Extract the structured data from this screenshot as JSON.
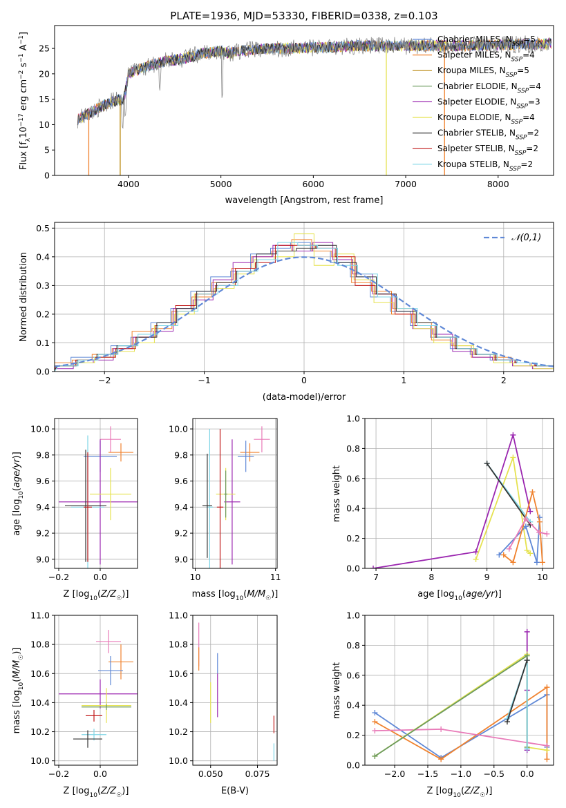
{
  "chart_data": [
    {
      "type": "line",
      "title": "PLATE=1936, MJD=53330, FIBERID=0338, z=0.103",
      "xlabel": "wavelength [Angstrom, rest frame]",
      "ylabel": "Flux [f_λ10^-17 erg cm^-2 s^-1 A^-1]",
      "xlim": [
        3200,
        8600
      ],
      "ylim": [
        0,
        29.5
      ],
      "xticks": [
        4000,
        5000,
        6000,
        7000,
        8000
      ],
      "yticks": [
        0,
        5,
        10,
        15,
        20,
        25
      ],
      "legend_position": "right",
      "series": [
        {
          "name": "Chabrier MILES, N_SSP=5",
          "color": "#5f88d6"
        },
        {
          "name": "Salpeter MILES, N_SSP=4",
          "color": "#f0822e"
        },
        {
          "name": "Kroupa MILES, N_SSP=5",
          "color": "#b8860b"
        },
        {
          "name": "Chabrier ELODIE, N_SSP=4",
          "color": "#6b9a5e"
        },
        {
          "name": "Salpeter ELODIE, N_SSP=3",
          "color": "#9b27b0"
        },
        {
          "name": "Kroupa ELODIE, N_SSP=4",
          "color": "#e5e24f"
        },
        {
          "name": "Chabrier STELIB, N_SSP=2",
          "color": "#333333"
        },
        {
          "name": "Salpeter STELIB, N_SSP=2",
          "color": "#c01818"
        },
        {
          "name": "Kroupa STELIB, N_SSP=2",
          "color": "#7fd6e6"
        }
      ],
      "data_series": {
        "name": "data",
        "color": "#888888",
        "x": [
          3450,
          3600,
          3800,
          3950,
          4000,
          4200,
          4400,
          4600,
          4800,
          5000,
          5100,
          5200,
          5400,
          5600,
          5800,
          6000,
          6200,
          6400,
          6600,
          6800,
          7000,
          7200,
          7400,
          7600,
          7800,
          8000,
          8200,
          8400,
          8580
        ],
        "y": [
          11,
          12.5,
          14.5,
          15,
          20,
          21.5,
          22.5,
          23,
          24,
          24.5,
          24,
          24.5,
          24.8,
          25,
          25,
          25.2,
          25.2,
          25.5,
          25.5,
          25.5,
          25.5,
          25.5,
          25.6,
          25.5,
          25.6,
          25.7,
          25.8,
          25.8,
          26
        ]
      }
    },
    {
      "type": "step",
      "xlabel": "(data-model)/error",
      "ylabel": "Normed distribution",
      "xlim": [
        -2.5,
        2.5
      ],
      "ylim": [
        0,
        0.52
      ],
      "xticks": [
        -2,
        -1,
        0,
        1,
        2
      ],
      "yticks": [
        0.0,
        0.1,
        0.2,
        0.3,
        0.4,
        0.5
      ],
      "grid": true,
      "legend_position": "top-right",
      "reference_curve": {
        "name": "𝒩(0,1)",
        "color": "#5f88d6"
      },
      "bin_edges": [
        -2.5,
        -2.3,
        -2.1,
        -1.9,
        -1.7,
        -1.5,
        -1.3,
        -1.1,
        -0.9,
        -0.7,
        -0.5,
        -0.3,
        -0.1,
        0.1,
        0.3,
        0.5,
        0.7,
        0.9,
        1.1,
        1.3,
        1.5,
        1.7,
        1.9,
        2.1,
        2.3,
        2.5
      ],
      "series": [
        {
          "color": "#5f88d6",
          "values": [
            0.02,
            0.05,
            0.05,
            0.09,
            0.12,
            0.17,
            0.22,
            0.28,
            0.33,
            0.35,
            0.41,
            0.43,
            0.45,
            0.42,
            0.38,
            0.33,
            0.26,
            0.21,
            0.16,
            0.12,
            0.08,
            0.06,
            0.04,
            0.03,
            0.02
          ]
        },
        {
          "color": "#f0822e",
          "values": [
            0.03,
            0.04,
            0.06,
            0.08,
            0.14,
            0.15,
            0.21,
            0.26,
            0.31,
            0.36,
            0.4,
            0.42,
            0.46,
            0.42,
            0.4,
            0.31,
            0.28,
            0.2,
            0.17,
            0.11,
            0.09,
            0.05,
            0.05,
            0.03,
            0.02
          ]
        },
        {
          "color": "#9b27b0",
          "values": [
            0.01,
            0.03,
            0.04,
            0.08,
            0.12,
            0.14,
            0.22,
            0.25,
            0.32,
            0.38,
            0.4,
            0.44,
            0.42,
            0.45,
            0.39,
            0.34,
            0.27,
            0.22,
            0.15,
            0.13,
            0.07,
            0.05,
            0.04,
            0.02,
            0.01
          ]
        },
        {
          "color": "#e5e24f",
          "values": [
            0.02,
            0.03,
            0.05,
            0.07,
            0.1,
            0.16,
            0.2,
            0.27,
            0.29,
            0.34,
            0.39,
            0.4,
            0.48,
            0.37,
            0.41,
            0.32,
            0.24,
            0.22,
            0.15,
            0.1,
            0.09,
            0.06,
            0.03,
            0.02,
            0.01
          ]
        },
        {
          "color": "#c01818",
          "values": [
            0.02,
            0.04,
            0.05,
            0.08,
            0.12,
            0.16,
            0.23,
            0.27,
            0.3,
            0.36,
            0.38,
            0.44,
            0.44,
            0.43,
            0.4,
            0.3,
            0.27,
            0.2,
            0.16,
            0.12,
            0.08,
            0.06,
            0.04,
            0.03,
            0.02
          ]
        },
        {
          "color": "#333333",
          "values": [
            0.02,
            0.04,
            0.06,
            0.09,
            0.12,
            0.17,
            0.22,
            0.28,
            0.31,
            0.35,
            0.41,
            0.42,
            0.43,
            0.44,
            0.38,
            0.33,
            0.27,
            0.21,
            0.17,
            0.12,
            0.08,
            0.06,
            0.04,
            0.03,
            0.02
          ]
        },
        {
          "color": "#7fd6e6",
          "values": [
            0.02,
            0.04,
            0.06,
            0.09,
            0.13,
            0.16,
            0.21,
            0.27,
            0.3,
            0.35,
            0.39,
            0.45,
            0.44,
            0.43,
            0.37,
            0.34,
            0.26,
            0.22,
            0.16,
            0.12,
            0.08,
            0.06,
            0.04,
            0.03,
            0.02
          ]
        }
      ]
    },
    {
      "type": "errorbar",
      "xlabel": "Z [log₁₀(Z/Z☉)]",
      "ylabel": "age  [log₁₀(age/yr)]",
      "xlim": [
        -0.22,
        0.18
      ],
      "ylim": [
        8.93,
        10.08
      ],
      "xticks": [
        -0.2,
        0.0
      ],
      "yticks": [
        9.0,
        9.2,
        9.4,
        9.6,
        9.8,
        10.0
      ],
      "grid": true,
      "points": [
        {
          "color": "#e87ab8",
          "x": 0.05,
          "y": 9.92,
          "xerr": 0.05,
          "yerr": 0.1
        },
        {
          "color": "#f0822e",
          "x": 0.1,
          "y": 9.82,
          "xerr": 0.06,
          "yerr": 0.07
        },
        {
          "color": "#5f88d6",
          "x": 0.0,
          "y": 9.79,
          "xerr": 0.08,
          "yerr": 0.12
        },
        {
          "color": "#9b27b0",
          "x": 0.0,
          "y": 9.44,
          "xerr": 0.2,
          "yerr": 0.48
        },
        {
          "color": "#e5e24f",
          "x": 0.05,
          "y": 9.5,
          "xerr": 0.1,
          "yerr": 0.2
        },
        {
          "color": "#333333",
          "x": -0.07,
          "y": 9.41,
          "xerr": 0.1,
          "yerr": 0.43
        },
        {
          "color": "#7fd6e6",
          "x": -0.06,
          "y": 9.4,
          "xerr": 0.08,
          "yerr": 0.55
        },
        {
          "color": "#c01818",
          "x": -0.06,
          "y": 9.4,
          "xerr": 0.02,
          "yerr": 0.42
        }
      ]
    },
    {
      "type": "errorbar",
      "xlabel": "mass [log₁₀(M/M☉)]",
      "ylabel": "",
      "xlim": [
        9.97,
        11.02
      ],
      "ylim": [
        8.93,
        10.08
      ],
      "xticks": [
        10,
        11
      ],
      "yticks": [
        9.0,
        9.2,
        9.4,
        9.6,
        9.8,
        10.0
      ],
      "grid": true,
      "points": [
        {
          "color": "#e87ab8",
          "x": 10.83,
          "y": 9.92,
          "xerr": 0.1,
          "yerr": 0.1
        },
        {
          "color": "#f0822e",
          "x": 10.68,
          "y": 9.82,
          "xerr": 0.12,
          "yerr": 0.07
        },
        {
          "color": "#5f88d6",
          "x": 10.63,
          "y": 9.79,
          "xerr": 0.1,
          "yerr": 0.12
        },
        {
          "color": "#9b27b0",
          "x": 10.46,
          "y": 9.44,
          "xerr": 0.1,
          "yerr": 0.48
        },
        {
          "color": "#e5e24f",
          "x": 10.38,
          "y": 9.5,
          "xerr": 0.12,
          "yerr": 0.2
        },
        {
          "color": "#6b9a5e",
          "x": 10.38,
          "y": 9.5,
          "xerr": 0.02,
          "yerr": 0.18
        },
        {
          "color": "#c01818",
          "x": 10.31,
          "y": 9.4,
          "xerr": 0.04,
          "yerr": 0.6
        },
        {
          "color": "#7fd6e6",
          "x": 10.18,
          "y": 9.4,
          "xerr": 0.04,
          "yerr": 0.6
        },
        {
          "color": "#333333",
          "x": 10.15,
          "y": 9.41,
          "xerr": 0.06,
          "yerr": 0.4
        }
      ]
    },
    {
      "type": "line",
      "xlabel": "age  [log₁₀(age/yr)]",
      "ylabel": "mass weight",
      "xlim": [
        6.8,
        10.2
      ],
      "ylim": [
        0,
        1
      ],
      "xticks": [
        7,
        8,
        9,
        10
      ],
      "yticks": [
        0.0,
        0.2,
        0.4,
        0.6,
        0.8,
        1.0
      ],
      "grid": true,
      "series": [
        {
          "color": "#9b27b0",
          "x": [
            6.95,
            8.8,
            9.47,
            9.78
          ],
          "y": [
            0.0,
            0.11,
            0.89,
            0.38
          ]
        },
        {
          "color": "#e5e24f",
          "x": [
            8.8,
            9.47,
            9.72,
            9.78
          ],
          "y": [
            0.06,
            0.74,
            0.12,
            0.1
          ]
        },
        {
          "color": "#7fd6e6",
          "x": [
            9.0,
            9.78
          ],
          "y": [
            0.7,
            0.31
          ]
        },
        {
          "color": "#333333",
          "x": [
            9.0,
            9.78
          ],
          "y": [
            0.7,
            0.29
          ]
        },
        {
          "color": "#5f88d6",
          "x": [
            9.22,
            9.7,
            9.9,
            9.95
          ],
          "y": [
            0.09,
            0.28,
            0.04,
            0.34
          ]
        },
        {
          "color": "#f0822e",
          "x": [
            9.3,
            9.47,
            9.82,
            9.95,
            10.0
          ],
          "y": [
            0.09,
            0.04,
            0.51,
            0.31,
            0.04
          ]
        },
        {
          "color": "#e87ab8",
          "x": [
            9.4,
            9.7,
            9.94,
            10.08
          ],
          "y": [
            0.13,
            0.33,
            0.24,
            0.23
          ]
        }
      ]
    },
    {
      "type": "errorbar",
      "xlabel": "Z [log₁₀(Z/Z☉)]",
      "ylabel": "mass [log₁₀(M/M☉)]",
      "xlim": [
        -0.22,
        0.18
      ],
      "ylim": [
        9.97,
        11.0
      ],
      "xticks": [
        -0.2,
        0.0
      ],
      "yticks": [
        10.0,
        10.2,
        10.4,
        10.6,
        10.8,
        11.0
      ],
      "grid": true,
      "points": [
        {
          "color": "#e87ab8",
          "x": 0.04,
          "y": 10.82,
          "xerr": 0.06,
          "yerr": 0.08
        },
        {
          "color": "#f0822e",
          "x": 0.1,
          "y": 10.68,
          "xerr": 0.06,
          "yerr": 0.12
        },
        {
          "color": "#5f88d6",
          "x": 0.05,
          "y": 10.62,
          "xerr": 0.06,
          "yerr": 0.1
        },
        {
          "color": "#9b27b0",
          "x": 0.0,
          "y": 10.46,
          "xerr": 0.2,
          "yerr": 0.1
        },
        {
          "color": "#e5e24f",
          "x": 0.03,
          "y": 10.38,
          "xerr": 0.12,
          "yerr": 0.12
        },
        {
          "color": "#6b9a5e",
          "x": 0.03,
          "y": 10.37,
          "xerr": 0.12,
          "yerr": 0.02
        },
        {
          "color": "#c01818",
          "x": -0.03,
          "y": 10.31,
          "xerr": 0.04,
          "yerr": 0.04
        },
        {
          "color": "#7fd6e6",
          "x": -0.03,
          "y": 10.18,
          "xerr": 0.06,
          "yerr": 0.04
        },
        {
          "color": "#333333",
          "x": -0.06,
          "y": 10.15,
          "xerr": 0.07,
          "yerr": 0.06
        }
      ]
    },
    {
      "type": "errorbar",
      "xlabel": "E(B-V)",
      "ylabel": "",
      "xlim": [
        0.0405,
        0.0855
      ],
      "ylim": [
        9.97,
        11.0
      ],
      "xticks": [
        0.05,
        0.075
      ],
      "yticks": [
        10.0,
        10.2,
        10.4,
        10.6,
        10.8,
        11.0
      ],
      "grid": true,
      "points": [
        {
          "color": "#e87ab8",
          "x": 0.0437,
          "y": 10.8,
          "yerr": 0.15
        },
        {
          "color": "#f0822e",
          "x": 0.0437,
          "y": 10.7,
          "yerr": 0.08
        },
        {
          "color": "#5f88d6",
          "x": 0.0537,
          "y": 10.67,
          "yerr": 0.07
        },
        {
          "color": "#9b27b0",
          "x": 0.0537,
          "y": 10.45,
          "yerr": 0.15
        },
        {
          "color": "#e5e24f",
          "x": 0.05,
          "y": 10.4,
          "yerr": 0.14
        },
        {
          "color": "#c01818",
          "x": 0.0838,
          "y": 10.25,
          "yerr": 0.06
        },
        {
          "color": "#7fd6e6",
          "x": 0.0838,
          "y": 10.06,
          "yerr": 0.06
        }
      ]
    },
    {
      "type": "line",
      "xlabel": "Z [log₁₀(Z/Z☉)]",
      "ylabel": "mass weight",
      "xlim": [
        -2.45,
        0.4
      ],
      "ylim": [
        0,
        1
      ],
      "xticks": [
        -2.0,
        -1.5,
        -1.0,
        -0.5,
        0.0
      ],
      "yticks": [
        0.0,
        0.2,
        0.4,
        0.6,
        0.8,
        1.0
      ],
      "grid": true,
      "series": [
        {
          "color": "#9b27b0",
          "x": [
            0.0,
            0.0,
            0.0
          ],
          "y": [
            0.89,
            0.5,
            0.1
          ]
        },
        {
          "color": "#5f88d6",
          "x": [
            -2.3,
            -1.3,
            0.3,
            0.3
          ],
          "y": [
            0.35,
            0.05,
            0.47,
            0.12
          ]
        },
        {
          "color": "#f0822e",
          "x": [
            -2.3,
            -1.3,
            0.3,
            0.3
          ],
          "y": [
            0.29,
            0.04,
            0.52,
            0.04
          ]
        },
        {
          "color": "#e87ab8",
          "x": [
            -2.3,
            -1.3,
            0.3
          ],
          "y": [
            0.23,
            0.24,
            0.13
          ]
        },
        {
          "color": "#e5e24f",
          "x": [
            -2.3,
            0.0,
            0.0,
            0.3
          ],
          "y": [
            0.06,
            0.74,
            0.12,
            0.1
          ]
        },
        {
          "color": "#6b9a5e",
          "x": [
            -2.3,
            0.0,
            0.0
          ],
          "y": [
            0.06,
            0.73,
            0.12
          ]
        },
        {
          "color": "#7fd6e6",
          "x": [
            -0.3,
            0.0,
            0.0
          ],
          "y": [
            0.31,
            0.7,
            0.11
          ]
        },
        {
          "color": "#333333",
          "x": [
            -0.3,
            0.0
          ],
          "y": [
            0.29,
            0.7
          ]
        }
      ]
    }
  ]
}
